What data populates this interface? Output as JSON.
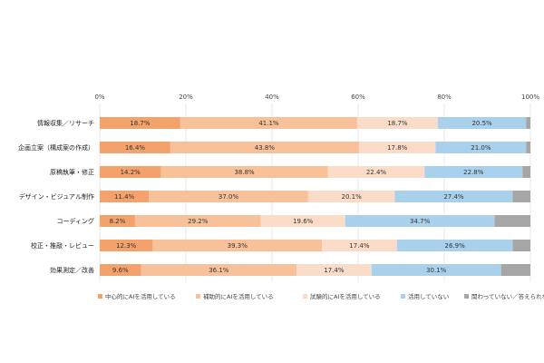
{
  "chart_data": {
    "type": "bar",
    "orientation": "horizontal",
    "stacked": true,
    "percent": true,
    "xlim": [
      0,
      100
    ],
    "x_ticks": [
      "0%",
      "20%",
      "40%",
      "60%",
      "80%",
      "100%"
    ],
    "grid": true,
    "legend_position": "bottom",
    "categories": [
      "情報収集／リサーチ",
      "企画立案（構成案の作成）",
      "原稿執筆・修正",
      "デザイン・ビジュアル制作",
      "コーディング",
      "校正・推敲・レビュー",
      "効果測定／改善"
    ],
    "series": [
      {
        "name": "中心的にAIを活用している",
        "color": "#f4a26b",
        "values": [
          18.7,
          16.4,
          14.2,
          11.4,
          8.2,
          12.3,
          9.6
        ],
        "labels": [
          "18.7%",
          "16.4%",
          "14.2%",
          "11.4%",
          "8.2%",
          "12.3%",
          "9.6%"
        ]
      },
      {
        "name": "補助的にAIを活用している",
        "color": "#f8c19a",
        "values": [
          41.1,
          43.8,
          38.8,
          37.0,
          29.2,
          39.3,
          36.1
        ],
        "labels": [
          "41.1%",
          "43.8%",
          "38.8%",
          "37.0%",
          "29.2%",
          "39.3%",
          "36.1%"
        ]
      },
      {
        "name": "試験的にAIを活用している",
        "color": "#fbdcc8",
        "values": [
          18.7,
          17.8,
          22.4,
          20.1,
          19.6,
          17.4,
          17.4
        ],
        "labels": [
          "18.7%",
          "17.8%",
          "22.4%",
          "20.1%",
          "19.6%",
          "17.4%",
          "17.4%"
        ]
      },
      {
        "name": "活用していない",
        "color": "#a9d1ec",
        "values": [
          20.5,
          21.0,
          22.8,
          27.4,
          34.7,
          26.9,
          30.1
        ],
        "labels": [
          "20.5%",
          "21.0%",
          "22.8%",
          "27.4%",
          "34.7%",
          "26.9%",
          "30.1%"
        ]
      },
      {
        "name": "関わっていない／答えられない",
        "color": "#a6a6a6",
        "values": [
          1.0,
          1.0,
          1.8,
          4.1,
          8.3,
          4.1,
          6.8
        ],
        "labels": [
          "",
          "",
          "",
          "",
          "",
          "",
          ""
        ]
      }
    ]
  }
}
